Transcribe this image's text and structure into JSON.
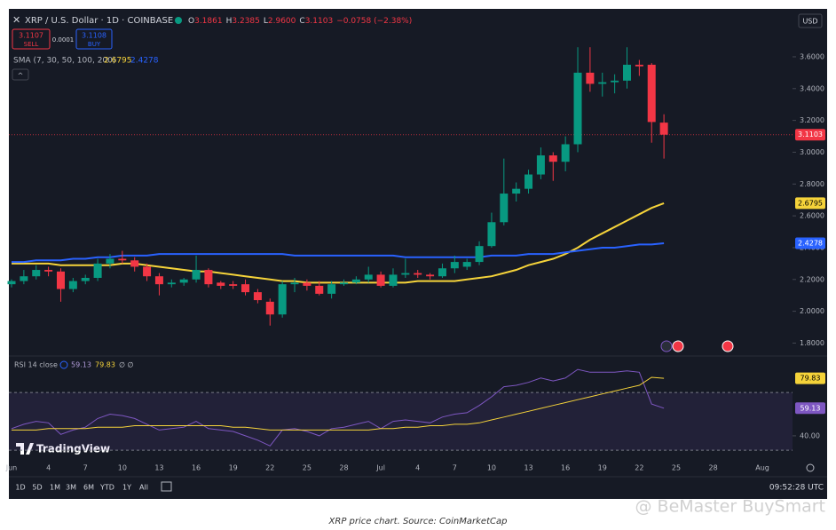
{
  "header": {
    "title": "XRP / U.S. Dollar · 1D · COINBASE",
    "ohlc": [
      [
        "O",
        "3.1861"
      ],
      [
        "H",
        "3.2385"
      ],
      [
        "L",
        "2.9600"
      ],
      [
        "C",
        "3.1103"
      ]
    ],
    "change": "−0.0758 (−2.38%)",
    "sell_price": 3.1107,
    "sell": "SELL",
    "spread": 0.0001,
    "buy_price": 3.1108,
    "buy": "BUY",
    "currency": "USD",
    "sma_legend": "SMA (7, 30, 50, 100, 200)",
    "rsi_legend": "RSI 14 close",
    "rsi_extra": "∅ ∅",
    "logo": "TradingView"
  },
  "toolbar": {
    "ranges": [
      "1D",
      "5D",
      "1M",
      "3M",
      "6M",
      "YTD",
      "1Y",
      "All"
    ],
    "time": "09:52:28 UTC"
  },
  "caption": "XRP price chart. Source: CoinMarketCap",
  "watermark": "@ BeMaster BuySmart",
  "chart_data": [
    {
      "type": "candlestick",
      "up_color": "#089981",
      "down_color": "#f23645",
      "categories": [
        "Jun",
        null,
        null,
        "4",
        null,
        null,
        "7",
        null,
        null,
        "10",
        null,
        null,
        "13",
        null,
        null,
        "16",
        null,
        null,
        "19",
        null,
        null,
        "22",
        null,
        null,
        "25",
        null,
        null,
        "28",
        null,
        null,
        "Jul",
        null,
        null,
        "4",
        null,
        null,
        "7",
        null,
        null,
        "10",
        null,
        null,
        "13",
        null,
        null,
        "16",
        null,
        null,
        "19",
        null,
        null,
        "22",
        null,
        null,
        "25",
        null,
        null,
        "28",
        null,
        null,
        null,
        "Aug"
      ],
      "open": [
        2.17,
        2.19,
        2.22,
        2.26,
        2.25,
        2.14,
        2.19,
        2.21,
        2.3,
        2.33,
        2.32,
        2.28,
        2.22,
        2.17,
        2.18,
        2.2,
        2.26,
        2.18,
        2.17,
        2.17,
        2.12,
        2.06,
        1.98,
        2.17,
        2.18,
        2.16,
        2.11,
        2.17,
        2.18,
        2.2,
        2.23,
        2.16,
        2.23,
        2.24,
        2.23,
        2.22,
        2.27,
        2.28,
        2.31,
        2.41,
        2.56,
        2.74,
        2.77,
        2.86,
        2.98,
        2.94,
        3.05,
        3.5,
        3.43,
        3.44,
        3.45,
        3.55,
        3.55,
        3.1861,
        null,
        null,
        null,
        null,
        null,
        null,
        null,
        null
      ],
      "high": [
        2.2,
        2.26,
        2.29,
        2.28,
        2.27,
        2.21,
        2.23,
        2.33,
        2.36,
        2.38,
        2.34,
        2.3,
        2.24,
        2.2,
        2.21,
        2.35,
        2.27,
        2.19,
        2.19,
        2.2,
        2.14,
        2.08,
        2.19,
        2.21,
        2.2,
        2.19,
        2.19,
        2.2,
        2.22,
        2.28,
        2.25,
        2.27,
        2.33,
        2.26,
        2.24,
        2.3,
        2.35,
        2.33,
        2.44,
        2.62,
        2.96,
        2.81,
        2.89,
        3.03,
        3.0,
        3.1,
        3.66,
        3.66,
        3.5,
        3.49,
        3.66,
        3.58,
        3.56,
        3.2385,
        null,
        null,
        null,
        null,
        null,
        null,
        null,
        null
      ],
      "low": [
        2.15,
        2.17,
        2.2,
        2.22,
        2.06,
        2.12,
        2.17,
        2.19,
        2.27,
        2.3,
        2.25,
        2.19,
        2.1,
        2.15,
        2.16,
        2.18,
        2.15,
        2.14,
        2.14,
        2.1,
        2.05,
        1.91,
        1.96,
        2.12,
        2.13,
        2.1,
        2.08,
        2.16,
        2.17,
        2.18,
        2.15,
        2.15,
        2.21,
        2.21,
        2.2,
        2.21,
        2.24,
        2.26,
        2.29,
        2.4,
        2.54,
        2.69,
        2.74,
        2.83,
        2.82,
        2.88,
        3.0,
        3.38,
        3.35,
        3.37,
        3.4,
        3.48,
        3.06,
        2.96,
        null,
        null,
        null,
        null,
        null,
        null,
        null,
        null
      ],
      "close": [
        2.19,
        2.22,
        2.26,
        2.25,
        2.14,
        2.19,
        2.21,
        2.3,
        2.33,
        2.32,
        2.28,
        2.22,
        2.17,
        2.18,
        2.2,
        2.26,
        2.17,
        2.16,
        2.16,
        2.12,
        2.07,
        1.98,
        2.17,
        2.18,
        2.16,
        2.11,
        2.17,
        2.18,
        2.2,
        2.23,
        2.16,
        2.23,
        2.24,
        2.23,
        2.22,
        2.27,
        2.31,
        2.31,
        2.41,
        2.56,
        2.74,
        2.77,
        2.86,
        2.98,
        2.94,
        3.05,
        3.5,
        3.43,
        3.44,
        3.45,
        3.55,
        3.54,
        3.19,
        3.1103,
        null,
        null,
        null,
        null,
        null,
        null,
        null,
        null
      ],
      "series": [
        {
          "color": "#f5d33a",
          "values": [
            2.3,
            2.3,
            2.3,
            2.3,
            2.29,
            2.29,
            2.29,
            2.29,
            2.29,
            2.3,
            2.3,
            2.29,
            2.28,
            2.27,
            2.26,
            2.25,
            2.25,
            2.24,
            2.23,
            2.22,
            2.21,
            2.2,
            2.19,
            2.19,
            2.18,
            2.18,
            2.18,
            2.18,
            2.18,
            2.18,
            2.18,
            2.18,
            2.18,
            2.19,
            2.19,
            2.19,
            2.19,
            2.2,
            2.21,
            2.22,
            2.24,
            2.26,
            2.29,
            2.31,
            2.33,
            2.36,
            2.4,
            2.45,
            2.49,
            2.53,
            2.57,
            2.61,
            2.65,
            2.6795,
            null,
            null,
            null,
            null,
            null,
            null,
            null,
            null
          ]
        },
        {
          "color": "#2962ff",
          "values": [
            2.31,
            2.31,
            2.32,
            2.32,
            2.32,
            2.33,
            2.33,
            2.34,
            2.34,
            2.35,
            2.35,
            2.35,
            2.36,
            2.36,
            2.36,
            2.36,
            2.36,
            2.36,
            2.36,
            2.36,
            2.36,
            2.36,
            2.36,
            2.35,
            2.35,
            2.35,
            2.35,
            2.35,
            2.35,
            2.35,
            2.35,
            2.35,
            2.34,
            2.34,
            2.34,
            2.34,
            2.34,
            2.34,
            2.34,
            2.35,
            2.35,
            2.35,
            2.36,
            2.36,
            2.36,
            2.37,
            2.38,
            2.39,
            2.4,
            2.4,
            2.41,
            2.42,
            2.42,
            2.4278,
            null,
            null,
            null,
            null,
            null,
            null,
            null,
            null
          ]
        }
      ],
      "ylim": [
        1.73,
        3.89
      ],
      "yticks": [
        {
          "value": 1.8,
          "label": "1.8000"
        },
        {
          "value": 2.0,
          "label": "2.0000"
        },
        {
          "value": 2.2,
          "label": "2.2000"
        },
        {
          "value": 2.4,
          "label": "2.4000"
        },
        {
          "value": 2.6,
          "label": "2.6000"
        },
        {
          "value": 2.8,
          "label": "2.8000"
        },
        {
          "value": 3.0,
          "label": "3.0000"
        },
        {
          "value": 3.2,
          "label": "3.2000"
        },
        {
          "value": 3.4,
          "label": "3.4000"
        },
        {
          "value": 3.6,
          "label": "3.6000"
        }
      ],
      "grid": false
    },
    {
      "type": "line",
      "bands": [
        30,
        70
      ],
      "series": [
        {
          "color": "#7e57c2",
          "values": [
            45,
            48,
            50,
            49,
            41,
            44,
            46,
            52,
            55,
            54,
            52,
            48,
            44,
            45,
            46,
            50,
            45,
            44,
            43,
            40,
            37,
            33,
            44,
            45,
            43,
            40,
            45,
            46,
            48,
            50,
            45,
            50,
            51,
            50,
            49,
            53,
            55,
            56,
            61,
            67,
            74,
            75,
            77,
            80,
            78,
            80,
            86,
            84,
            84,
            84,
            85,
            84,
            62,
            59.13,
            null,
            null,
            null,
            null,
            null,
            null,
            null,
            null
          ]
        },
        {
          "color": "#f5d33a",
          "values": [
            44,
            44,
            44,
            45,
            45,
            45,
            45,
            46,
            46,
            46,
            47,
            47,
            47,
            47,
            47,
            47,
            47,
            47,
            46,
            46,
            45,
            44,
            44,
            44,
            44,
            44,
            44,
            44,
            44,
            44,
            45,
            45,
            46,
            46,
            47,
            47,
            48,
            48,
            49,
            51,
            53,
            55,
            57,
            59,
            61,
            63,
            65,
            67,
            69,
            71,
            73,
            75,
            80.5,
            79.83,
            null,
            null,
            null,
            null,
            null,
            null,
            null,
            null
          ]
        }
      ],
      "ylim": [
        29.5,
        88.5
      ],
      "yticks": [
        {
          "value": 40,
          "label": "40.00"
        }
      ],
      "grid": false
    }
  ]
}
